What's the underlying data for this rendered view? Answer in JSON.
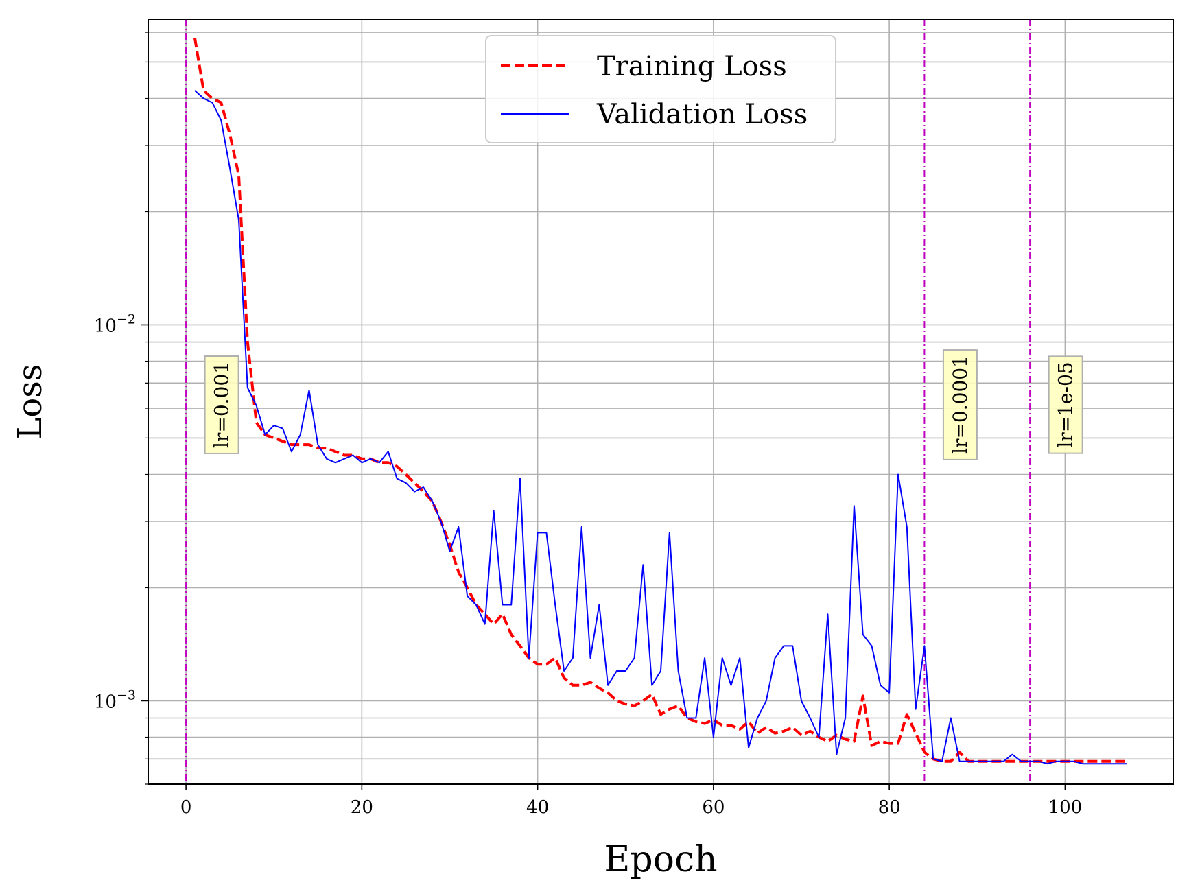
{
  "chart_data": {
    "type": "line",
    "xlabel": "Epoch",
    "ylabel": "Loss",
    "xlim": [
      -4.3,
      112.3
    ],
    "ylim": [
      0.0006,
      0.065
    ],
    "yscale": "log",
    "grid": true,
    "legend_position": "top-center",
    "x_ticks": [
      0,
      20,
      40,
      60,
      80,
      100
    ],
    "y_ticks": [
      {
        "value": 0.01,
        "base": "10",
        "exp": "−2"
      },
      {
        "value": 0.001,
        "base": "10",
        "exp": "−3"
      }
    ],
    "y_minor_ticks": [
      0.0006,
      0.0007,
      0.0008,
      0.0009,
      0.002,
      0.003,
      0.004,
      0.005,
      0.006,
      0.007,
      0.008,
      0.009,
      0.02,
      0.03,
      0.04,
      0.05,
      0.06
    ],
    "series": [
      {
        "name": "Training Loss",
        "color": "#ff0000",
        "style": "dashed",
        "x": [
          1,
          2,
          3,
          4,
          5,
          6,
          7,
          8,
          9,
          10,
          11,
          12,
          13,
          14,
          15,
          16,
          17,
          18,
          19,
          20,
          21,
          22,
          23,
          24,
          25,
          26,
          27,
          28,
          29,
          30,
          31,
          32,
          33,
          34,
          35,
          36,
          37,
          38,
          39,
          40,
          41,
          42,
          43,
          44,
          45,
          46,
          47,
          48,
          49,
          50,
          51,
          52,
          53,
          54,
          55,
          56,
          57,
          58,
          59,
          60,
          61,
          62,
          63,
          64,
          65,
          66,
          67,
          68,
          69,
          70,
          71,
          72,
          73,
          74,
          75,
          76,
          77,
          78,
          79,
          80,
          81,
          82,
          83,
          84,
          85,
          86,
          87,
          88,
          89,
          90,
          91,
          92,
          93,
          94,
          95,
          96,
          97,
          98,
          99,
          100,
          101,
          102,
          103,
          104,
          105,
          106,
          107
        ],
        "y": [
          0.058,
          0.042,
          0.04,
          0.039,
          0.032,
          0.025,
          0.009,
          0.0055,
          0.0051,
          0.005,
          0.0049,
          0.0048,
          0.0048,
          0.0048,
          0.0047,
          0.0047,
          0.0046,
          0.0045,
          0.0045,
          0.0044,
          0.0044,
          0.0043,
          0.0043,
          0.0042,
          0.004,
          0.0038,
          0.0036,
          0.0034,
          0.003,
          0.0026,
          0.0022,
          0.002,
          0.0018,
          0.0017,
          0.0016,
          0.0017,
          0.0015,
          0.0014,
          0.0013,
          0.00125,
          0.00125,
          0.0013,
          0.00115,
          0.0011,
          0.0011,
          0.00112,
          0.00108,
          0.00105,
          0.001,
          0.00098,
          0.00097,
          0.001,
          0.00104,
          0.00092,
          0.00095,
          0.00097,
          0.0009,
          0.00088,
          0.00087,
          0.00089,
          0.00086,
          0.00086,
          0.00084,
          0.00088,
          0.00082,
          0.00085,
          0.00082,
          0.00083,
          0.00085,
          0.00081,
          0.00083,
          0.0008,
          0.00078,
          0.00081,
          0.00079,
          0.00078,
          0.00103,
          0.00076,
          0.00078,
          0.00077,
          0.00077,
          0.00092,
          0.00082,
          0.00073,
          0.0007,
          0.00069,
          0.00069,
          0.00073,
          0.00069,
          0.00069,
          0.00069,
          0.00069,
          0.00069,
          0.00069,
          0.00069,
          0.00069,
          0.00069,
          0.00069,
          0.00069,
          0.00069,
          0.00069,
          0.00069,
          0.00069,
          0.00069,
          0.00069,
          0.00069,
          0.00069
        ]
      },
      {
        "name": "Validation Loss",
        "color": "#0000ff",
        "style": "solid",
        "x": [
          1,
          2,
          3,
          4,
          5,
          6,
          7,
          8,
          9,
          10,
          11,
          12,
          13,
          14,
          15,
          16,
          17,
          18,
          19,
          20,
          21,
          22,
          23,
          24,
          25,
          26,
          27,
          28,
          29,
          30,
          31,
          32,
          33,
          34,
          35,
          36,
          37,
          38,
          39,
          40,
          41,
          42,
          43,
          44,
          45,
          46,
          47,
          48,
          49,
          50,
          51,
          52,
          53,
          54,
          55,
          56,
          57,
          58,
          59,
          60,
          61,
          62,
          63,
          64,
          65,
          66,
          67,
          68,
          69,
          70,
          71,
          72,
          73,
          74,
          75,
          76,
          77,
          78,
          79,
          80,
          81,
          82,
          83,
          84,
          85,
          86,
          87,
          88,
          89,
          90,
          91,
          92,
          93,
          94,
          95,
          96,
          97,
          98,
          99,
          100,
          101,
          102,
          103,
          104,
          105,
          106,
          107
        ],
        "y": [
          0.042,
          0.04,
          0.039,
          0.035,
          0.026,
          0.019,
          0.0068,
          0.0061,
          0.0051,
          0.0054,
          0.0053,
          0.0046,
          0.0051,
          0.0067,
          0.0048,
          0.0044,
          0.0043,
          0.0044,
          0.0045,
          0.0043,
          0.0044,
          0.0043,
          0.0046,
          0.0039,
          0.0038,
          0.0036,
          0.0037,
          0.0034,
          0.003,
          0.0025,
          0.0029,
          0.0019,
          0.0018,
          0.0016,
          0.0032,
          0.0018,
          0.0018,
          0.0039,
          0.0013,
          0.0028,
          0.0028,
          0.0018,
          0.0012,
          0.0013,
          0.0029,
          0.0013,
          0.0018,
          0.0011,
          0.0012,
          0.0012,
          0.0013,
          0.0023,
          0.0011,
          0.0012,
          0.0028,
          0.0012,
          0.0009,
          0.0009,
          0.0013,
          0.0008,
          0.0013,
          0.0011,
          0.0013,
          0.00075,
          0.0009,
          0.001,
          0.0013,
          0.0014,
          0.0014,
          0.001,
          0.0009,
          0.0008,
          0.0017,
          0.00072,
          0.0009,
          0.0033,
          0.0015,
          0.0014,
          0.0011,
          0.00105,
          0.004,
          0.0029,
          0.00095,
          0.0014,
          0.0007,
          0.00069,
          0.0009,
          0.00069,
          0.00069,
          0.00069,
          0.00069,
          0.00069,
          0.00069,
          0.00072,
          0.00069,
          0.00069,
          0.00069,
          0.00068,
          0.00069,
          0.00069,
          0.00069,
          0.00068,
          0.00068,
          0.00068,
          0.00068,
          0.00068,
          0.00068
        ]
      }
    ],
    "lr_markers": [
      {
        "x": 0,
        "label": "lr=0.001"
      },
      {
        "x": 84,
        "label": "lr=0.0001"
      },
      {
        "x": 96,
        "label": "lr=1e-05"
      }
    ],
    "colors": {
      "grid": "#b0b0b0",
      "lr_line": "#bf00bf",
      "lr_box_fill": "#ffffc0",
      "lr_box_stroke": "#b0b0b0"
    }
  }
}
